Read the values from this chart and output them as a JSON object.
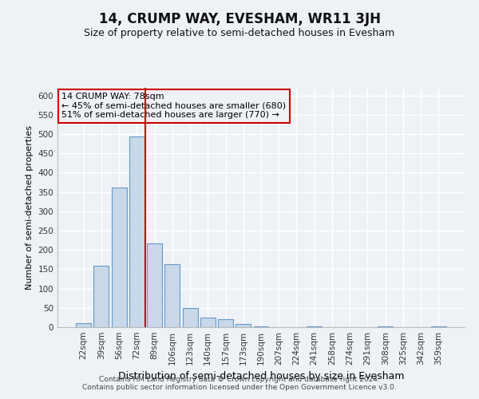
{
  "title": "14, CRUMP WAY, EVESHAM, WR11 3JH",
  "subtitle": "Size of property relative to semi-detached houses in Evesham",
  "xlabel": "Distribution of semi-detached houses by size in Evesham",
  "ylabel": "Number of semi-detached properties",
  "bar_labels": [
    "22sqm",
    "39sqm",
    "56sqm",
    "72sqm",
    "89sqm",
    "106sqm",
    "123sqm",
    "140sqm",
    "157sqm",
    "173sqm",
    "190sqm",
    "207sqm",
    "224sqm",
    "241sqm",
    "258sqm",
    "274sqm",
    "291sqm",
    "308sqm",
    "325sqm",
    "342sqm",
    "359sqm"
  ],
  "bar_values": [
    10,
    160,
    362,
    493,
    218,
    163,
    50,
    25,
    20,
    8,
    2,
    0,
    0,
    2,
    0,
    0,
    0,
    2,
    0,
    0,
    2
  ],
  "bar_color": "#c8d8e8",
  "bar_edgecolor": "#6699cc",
  "ylim": [
    0,
    620
  ],
  "yticks": [
    0,
    50,
    100,
    150,
    200,
    250,
    300,
    350,
    400,
    450,
    500,
    550,
    600
  ],
  "property_line_label": "14 CRUMP WAY: 78sqm",
  "annotation_smaller": "← 45% of semi-detached houses are smaller (680)",
  "annotation_larger": "51% of semi-detached houses are larger (770) →",
  "annotation_box_color": "#cc0000",
  "footer_line1": "Contains HM Land Registry data © Crown copyright and database right 2024.",
  "footer_line2": "Contains public sector information licensed under the Open Government Licence v3.0.",
  "background_color": "#eef2f7",
  "grid_color": "#ffffff",
  "title_fontsize": 12,
  "subtitle_fontsize": 9,
  "xlabel_fontsize": 9,
  "ylabel_fontsize": 8,
  "tick_fontsize": 7.5,
  "annotation_fontsize": 8,
  "footer_fontsize": 6.5
}
